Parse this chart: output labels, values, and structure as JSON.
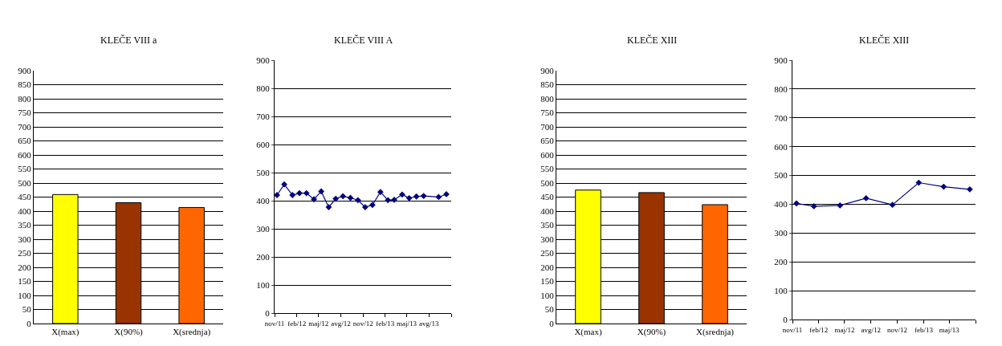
{
  "chart_data": [
    {
      "type": "bar",
      "title": "KLEČE VIII a",
      "categories": [
        "X(max)",
        "X(90%)",
        "X(srednja)"
      ],
      "values": [
        459,
        430,
        413
      ],
      "colors": [
        "#ffff00",
        "#993300",
        "#ff6600"
      ],
      "ylim": [
        0,
        900
      ],
      "yticks": [
        0,
        50,
        100,
        150,
        200,
        250,
        300,
        350,
        400,
        450,
        500,
        550,
        600,
        650,
        700,
        750,
        800,
        850,
        900
      ],
      "grid": "y"
    },
    {
      "type": "line",
      "title": "KLEČE VIII A",
      "x": [
        "2011-11-11",
        "2011-12-11",
        "2012-01-14",
        "2012-02-12",
        "2012-03-12",
        "2012-04-12",
        "2012-05-12",
        "2012-06-12",
        "2012-07-11",
        "2012-08-10",
        "2012-09-10",
        "2012-10-11",
        "2012-11-10",
        "2012-12-10",
        "2013-01-12",
        "2013-02-12",
        "2013-03-10",
        "2013-04-12",
        "2013-05-11",
        "2013-06-10",
        "2013-07-10",
        "2013-09-10",
        "2013-10-12"
      ],
      "series": [
        {
          "color": "#000080",
          "values": [
            420,
            458,
            420,
            427,
            427,
            405,
            433,
            377,
            407,
            416,
            410,
            402,
            377,
            385,
            431,
            402,
            403,
            422,
            409,
            415,
            417,
            413,
            423
          ]
        }
      ],
      "xlim": [
        "2011-11-01",
        "2013-11-01"
      ],
      "xticks": [
        {
          "value": "2011-11-01",
          "label": "nov/11"
        },
        {
          "value": "2012-02-01",
          "label": "feb/12"
        },
        {
          "value": "2012-05-01",
          "label": "maj/12"
        },
        {
          "value": "2012-08-01",
          "label": "avg/12"
        },
        {
          "value": "2012-11-01",
          "label": "nov/12"
        },
        {
          "value": "2013-02-01",
          "label": "feb/13"
        },
        {
          "value": "2013-05-01",
          "label": "maj/13"
        },
        {
          "value": "2013-08-01",
          "label": "avg/13"
        },
        {
          "value": "2013-11-01",
          "label": null
        }
      ],
      "ylim": [
        0,
        900
      ],
      "yticks": [
        0,
        100,
        200,
        300,
        400,
        500,
        600,
        700,
        800,
        900
      ],
      "grid": "y",
      "marker": "diamond",
      "line_style": "solid"
    },
    {
      "type": "bar",
      "title": "KLEČE XIII",
      "categories": [
        "X(max)",
        "X(90%)",
        "X(srednja)"
      ],
      "values": [
        475,
        466,
        423
      ],
      "colors": [
        "#ffff00",
        "#993300",
        "#ff6600"
      ],
      "ylim": [
        0,
        900
      ],
      "yticks": [
        0,
        50,
        100,
        150,
        200,
        250,
        300,
        350,
        400,
        450,
        500,
        550,
        600,
        650,
        700,
        750,
        800,
        850,
        900
      ],
      "grid": "y"
    },
    {
      "type": "line",
      "title": "KLEČE XIII",
      "x": [
        "2011-11-15",
        "2012-01-15",
        "2012-04-15",
        "2012-07-15",
        "2012-10-15",
        "2013-01-15",
        "2013-04-12",
        "2013-07-12"
      ],
      "series": [
        {
          "color": "#000080",
          "values": [
            403,
            393,
            396,
            421,
            398,
            475,
            461,
            452
          ]
        }
      ],
      "xlim": [
        "2011-11-01",
        "2013-08-01"
      ],
      "xticks": [
        {
          "value": "2011-11-01",
          "label": "nov/11"
        },
        {
          "value": "2012-02-01",
          "label": "feb/12"
        },
        {
          "value": "2012-05-01",
          "label": "maj/12"
        },
        {
          "value": "2012-08-01",
          "label": "avg/12"
        },
        {
          "value": "2012-11-01",
          "label": "nov/12"
        },
        {
          "value": "2013-02-01",
          "label": "feb/13"
        },
        {
          "value": "2013-05-01",
          "label": "maj/13"
        },
        {
          "value": "2013-08-01",
          "label": null
        }
      ],
      "ylim": [
        0,
        900
      ],
      "yticks": [
        0,
        100,
        200,
        300,
        400,
        500,
        600,
        700,
        800,
        900
      ],
      "grid": "y",
      "marker": "diamond",
      "line_style": "solid"
    }
  ]
}
